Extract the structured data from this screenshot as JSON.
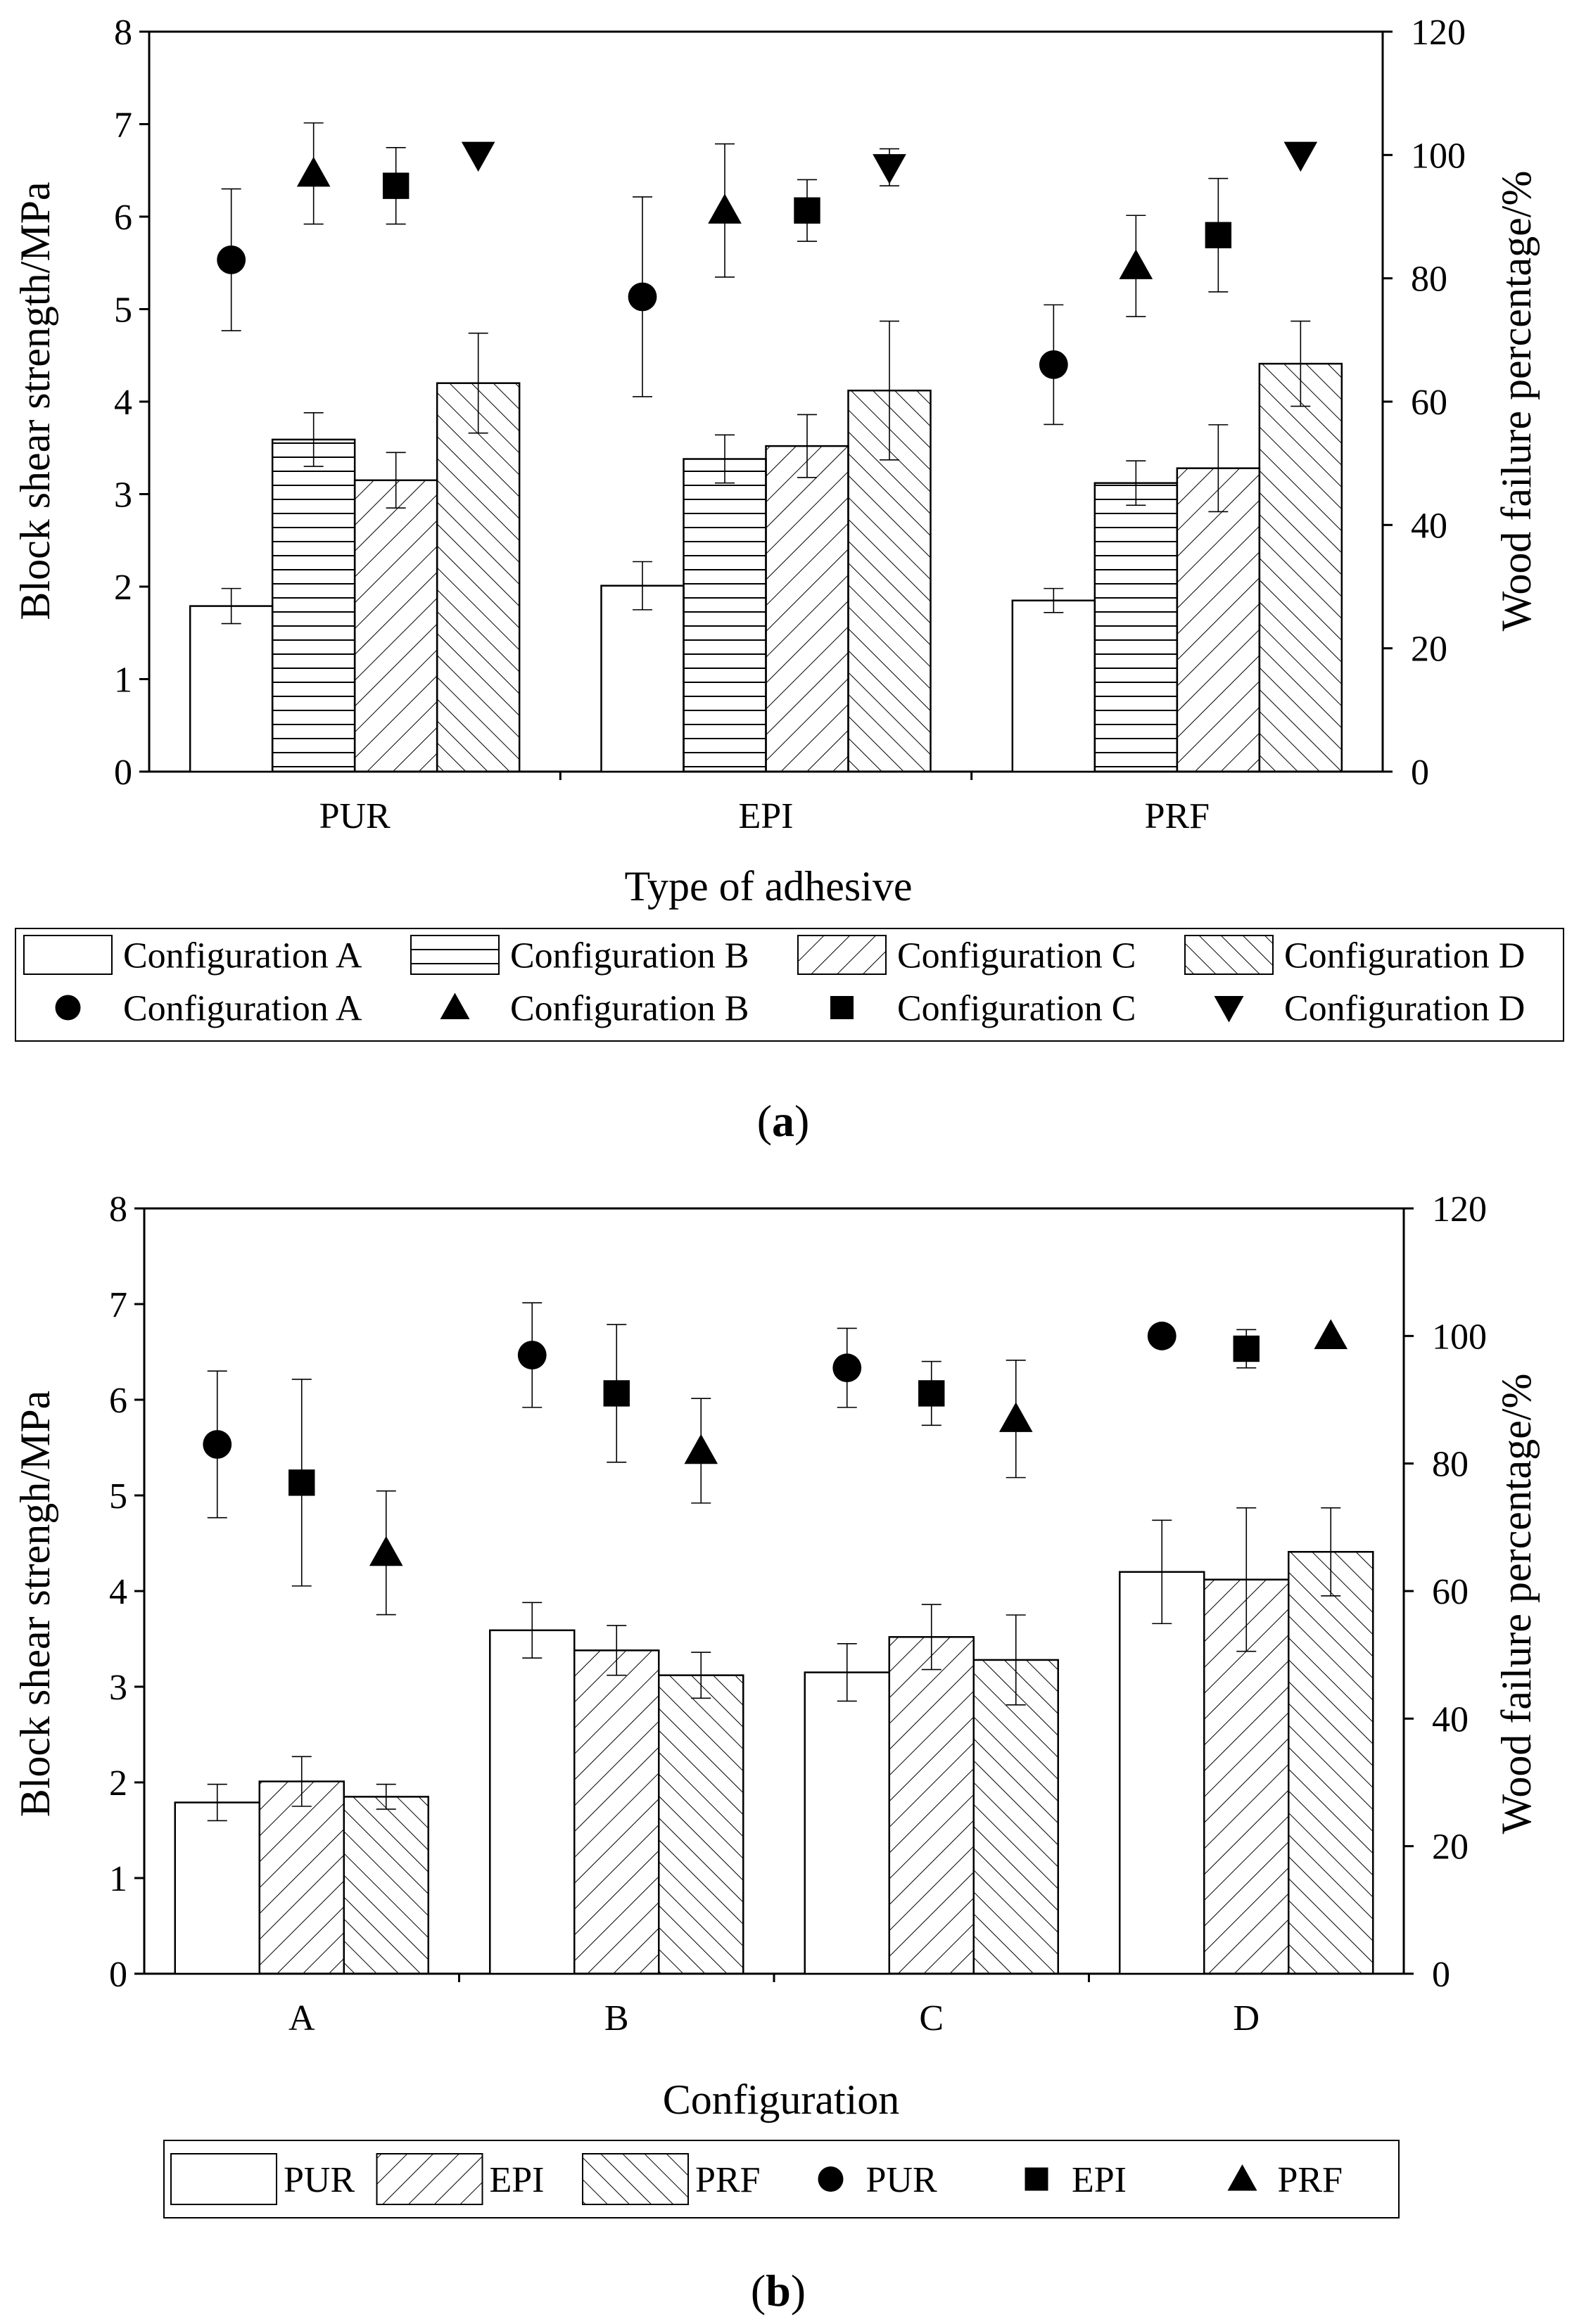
{
  "colors": {
    "bar_fill": "#ffffff",
    "stroke": "#000000",
    "background": "#ffffff"
  },
  "chart_data": [
    {
      "panel": "a",
      "panel_label": "a",
      "type": "bar",
      "title": "",
      "xlabel": "Type of adhesive",
      "ylabel": "Block shear strength/MPa",
      "y2label": "Wood failure percentage/%",
      "categories": [
        "PUR",
        "EPI",
        "PRF"
      ],
      "ylim": [
        0,
        8
      ],
      "y2lim": [
        0,
        120
      ],
      "yticks": [
        "0",
        "1",
        "2",
        "3",
        "4",
        "5",
        "6",
        "7",
        "8"
      ],
      "y2ticks": [
        "0",
        "20",
        "40",
        "60",
        "80",
        "100",
        "120"
      ],
      "bar_series": [
        {
          "name": "Configuration A",
          "pattern": "none",
          "values": [
            1.79,
            2.01,
            1.85
          ],
          "errors": [
            0.19,
            0.26,
            0.13
          ]
        },
        {
          "name": "Configuration B",
          "pattern": "horizontal",
          "values": [
            3.59,
            3.38,
            3.12
          ],
          "errors": [
            0.29,
            0.26,
            0.24
          ]
        },
        {
          "name": "Configuration C",
          "pattern": "diag-up",
          "values": [
            3.15,
            3.52,
            3.28
          ],
          "errors": [
            0.3,
            0.34,
            0.47
          ]
        },
        {
          "name": "Configuration D",
          "pattern": "diag-down",
          "values": [
            4.2,
            4.12,
            4.41
          ],
          "errors": [
            0.54,
            0.75,
            0.46
          ]
        }
      ],
      "scatter_series": [
        {
          "name": "Configuration A",
          "marker": "circle",
          "values": [
            83,
            77,
            66
          ],
          "errors": [
            11.5,
            16.2,
            9.7
          ]
        },
        {
          "name": "Configuration B",
          "marker": "triangle-up",
          "values": [
            97,
            91,
            82
          ],
          "errors": [
            8.2,
            10.8,
            8.2
          ]
        },
        {
          "name": "Configuration C",
          "marker": "square",
          "values": [
            95,
            91,
            87
          ],
          "errors": [
            6.2,
            5.0,
            9.2
          ]
        },
        {
          "name": "Configuration D",
          "marker": "triangle-down",
          "values": [
            100,
            98,
            100
          ],
          "errors": [
            0,
            3.0,
            0
          ]
        }
      ],
      "legend": {
        "bars": [
          "Configuration A",
          "Configuration B",
          "Configuration C",
          "Configuration D"
        ],
        "markers": [
          "Configuration A",
          "Configuration B",
          "Configuration C",
          "Configuration D"
        ]
      }
    },
    {
      "panel": "b",
      "panel_label": "b",
      "type": "bar",
      "title": "",
      "xlabel": "Configuration",
      "ylabel": "Block shear strengh/MPa",
      "y2label": "Wood failure percentage/%",
      "categories": [
        "A",
        "B",
        "C",
        "D"
      ],
      "ylim": [
        0,
        8
      ],
      "y2lim": [
        0,
        120
      ],
      "yticks": [
        "0",
        "1",
        "2",
        "3",
        "4",
        "5",
        "6",
        "7",
        "8"
      ],
      "y2ticks": [
        "0",
        "20",
        "40",
        "60",
        "80",
        "100",
        "120"
      ],
      "bar_series": [
        {
          "name": "PUR",
          "pattern": "none",
          "values": [
            1.79,
            3.59,
            3.15,
            4.2
          ],
          "errors": [
            0.19,
            0.29,
            0.3,
            0.54
          ]
        },
        {
          "name": "EPI",
          "pattern": "diag-up",
          "values": [
            2.01,
            3.38,
            3.52,
            4.12
          ],
          "errors": [
            0.26,
            0.26,
            0.34,
            0.75
          ]
        },
        {
          "name": "PRF",
          "pattern": "diag-down",
          "values": [
            1.85,
            3.12,
            3.28,
            4.41
          ],
          "errors": [
            0.13,
            0.24,
            0.47,
            0.46
          ]
        }
      ],
      "scatter_series": [
        {
          "name": "PUR",
          "marker": "circle",
          "values": [
            83,
            97,
            95,
            100
          ],
          "errors": [
            11.5,
            8.2,
            6.2,
            0
          ]
        },
        {
          "name": "EPI",
          "marker": "square",
          "values": [
            77,
            91,
            91,
            98
          ],
          "errors": [
            16.2,
            10.8,
            5.0,
            3.0
          ]
        },
        {
          "name": "PRF",
          "marker": "triangle-up",
          "values": [
            66,
            82,
            87,
            100
          ],
          "errors": [
            9.7,
            8.2,
            9.2,
            0
          ]
        }
      ],
      "legend": {
        "bars": [
          "PUR",
          "EPI",
          "PRF"
        ],
        "markers": [
          "PUR",
          "EPI",
          "PRF"
        ]
      }
    }
  ]
}
